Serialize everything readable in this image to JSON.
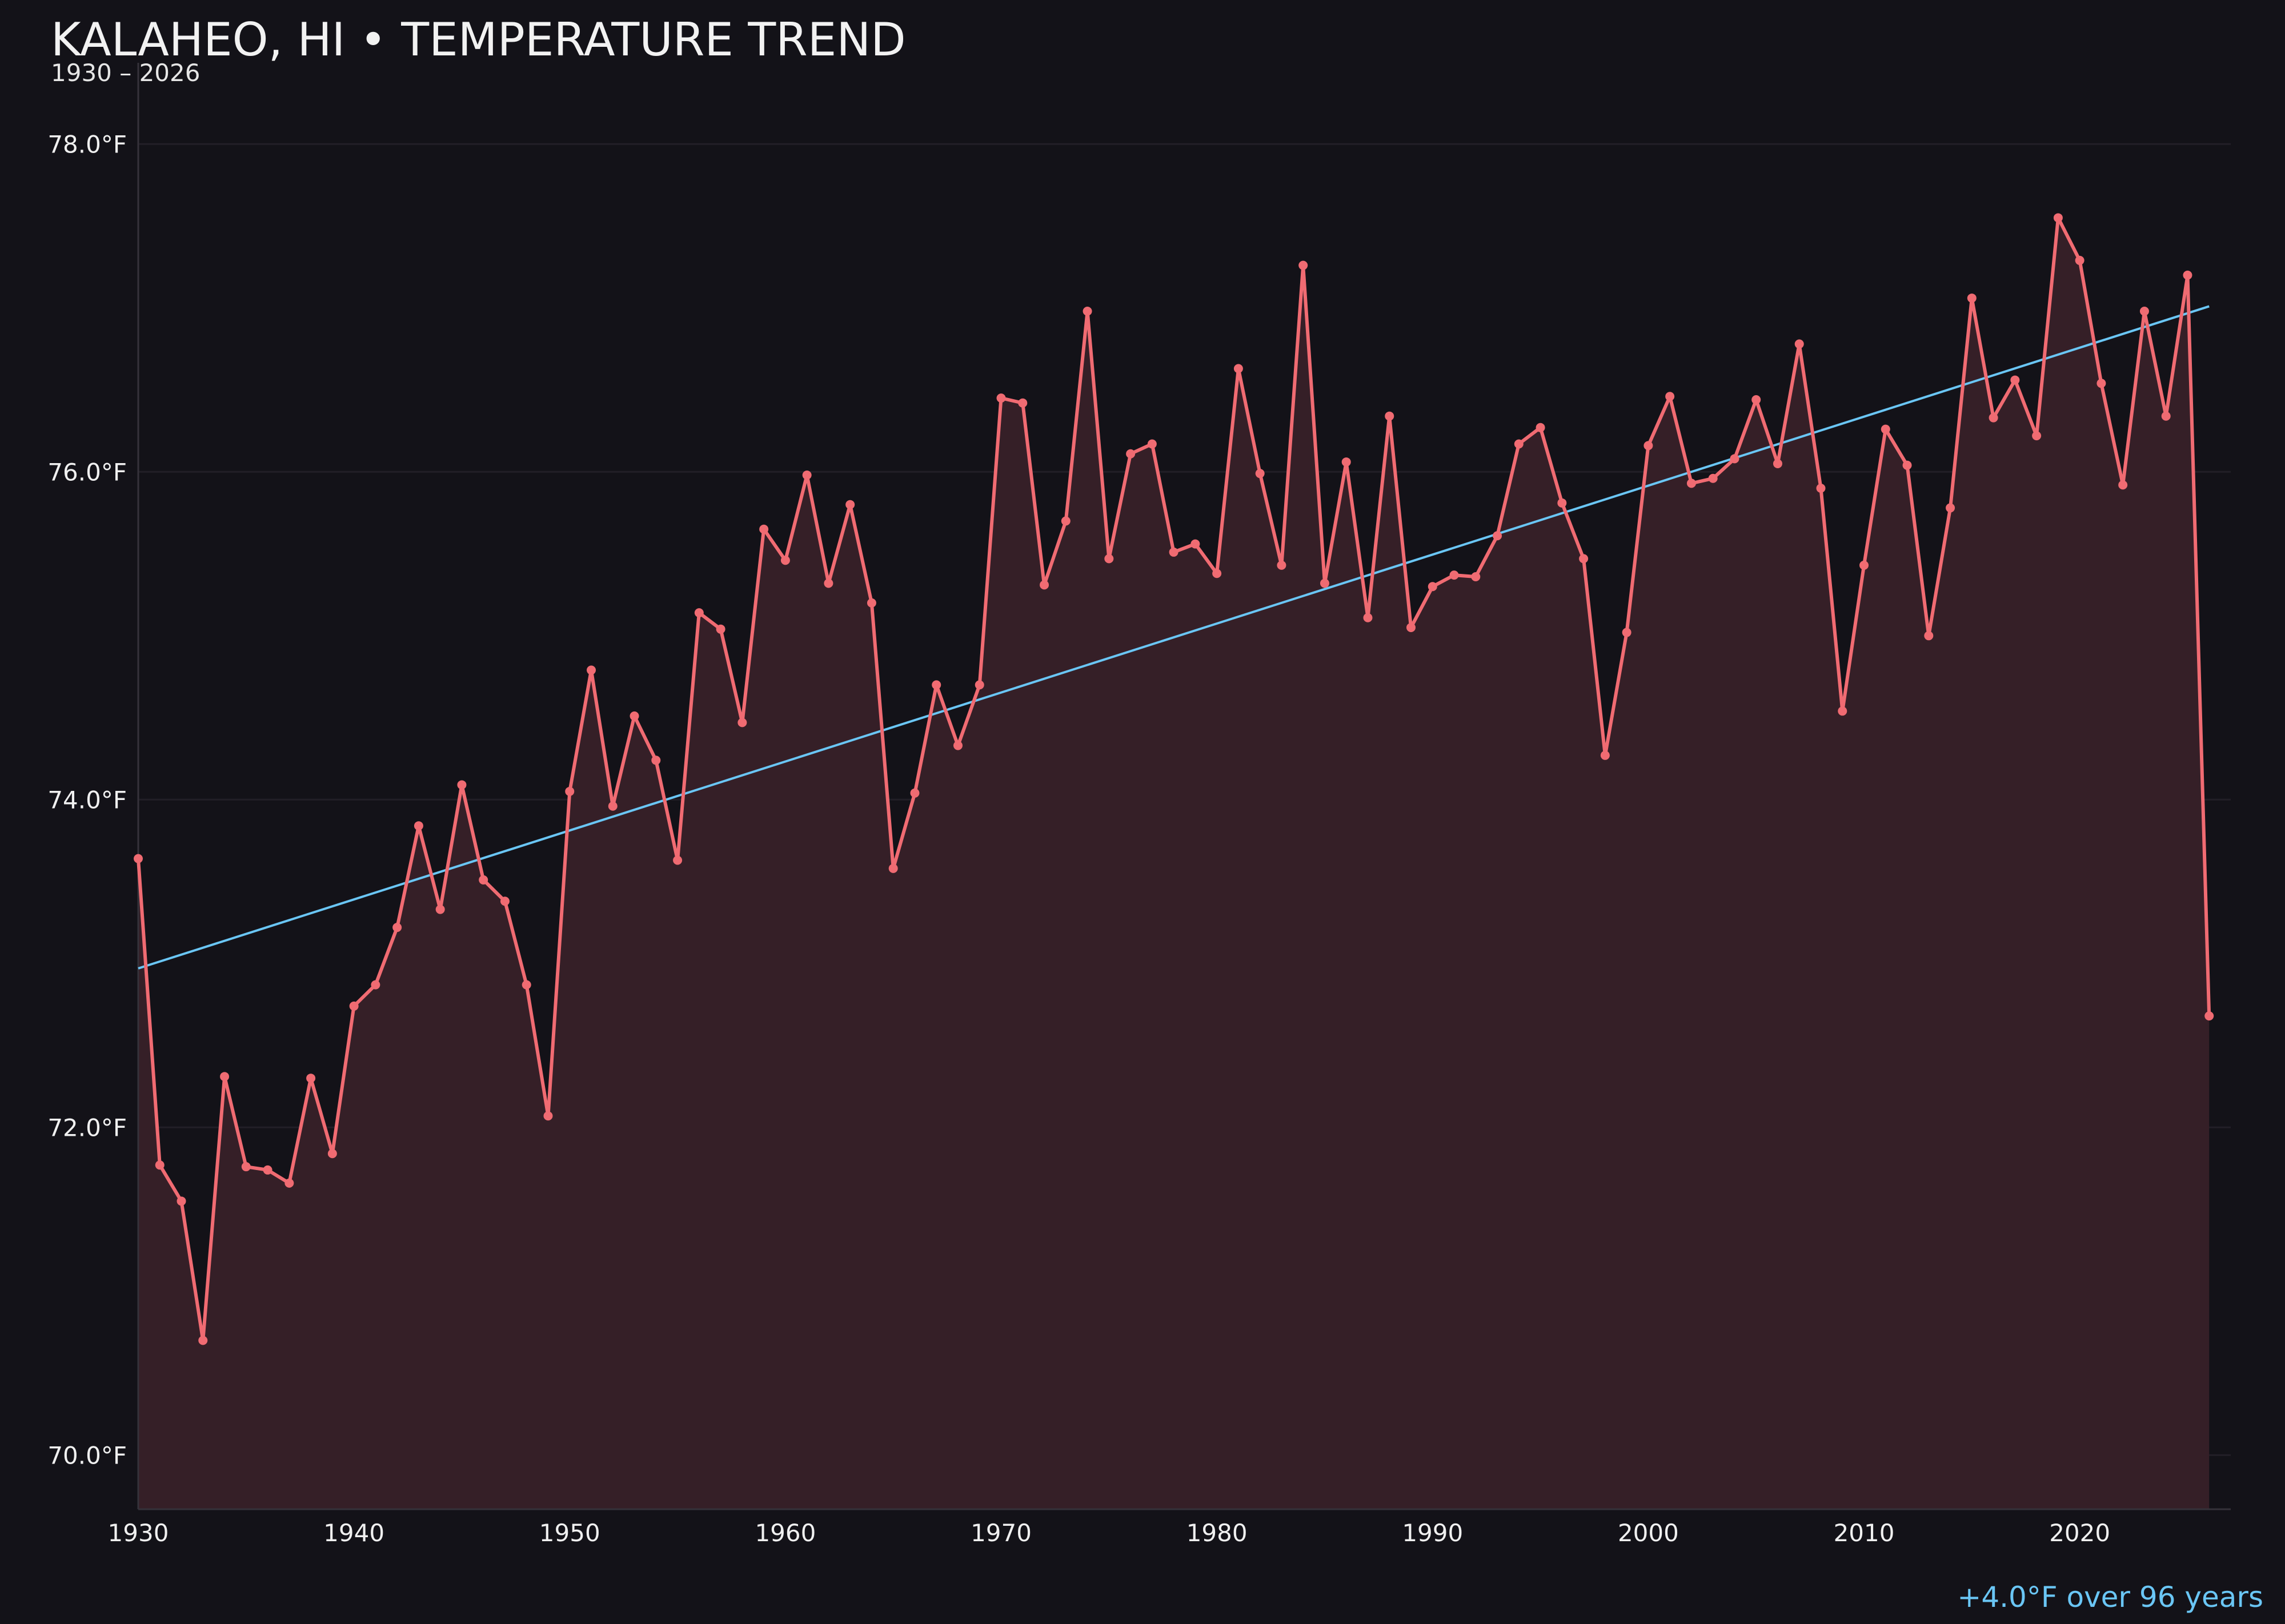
{
  "colors": {
    "background": "#131218",
    "series": "#f06b72",
    "area": "#351f27",
    "trend": "#6ac6f5",
    "grid": "#221f27",
    "axis": "#35323a"
  },
  "chart_data": {
    "type": "line",
    "title": "KALAHEO, HI • TEMPERATURE TREND",
    "subtitle": "1930 – 2026",
    "xlabel": "",
    "ylabel": "",
    "xlim": [
      1930,
      2027
    ],
    "ylim": [
      69.67,
      78.67
    ],
    "y_ticks": [
      70.0,
      72.0,
      74.0,
      76.0,
      78.0
    ],
    "y_tick_labels": [
      "70.0°F",
      "72.0°F",
      "74.0°F",
      "76.0°F",
      "78.0°F"
    ],
    "x_ticks": [
      1930,
      1940,
      1950,
      1960,
      1970,
      1980,
      1990,
      2000,
      2010,
      2020
    ],
    "x_tick_labels": [
      "1930",
      "1940",
      "1950",
      "1960",
      "1970",
      "1980",
      "1990",
      "2000",
      "2010",
      "2020"
    ],
    "grid": true,
    "series": [
      {
        "x": [
          1930,
          1931,
          1932,
          1933,
          1934,
          1935,
          1936,
          1937,
          1938,
          1939,
          1940,
          1941,
          1942,
          1943,
          1944,
          1945,
          1946,
          1947,
          1948,
          1949,
          1950,
          1951,
          1952,
          1953,
          1954,
          1955,
          1956,
          1957,
          1958,
          1959,
          1960,
          1961,
          1962,
          1963,
          1964,
          1965,
          1966,
          1967,
          1968,
          1969,
          1970,
          1971,
          1972,
          1973,
          1974,
          1975,
          1976,
          1977,
          1978,
          1979,
          1980,
          1981,
          1982,
          1983,
          1984,
          1985,
          1986,
          1987,
          1988,
          1989,
          1990,
          1991,
          1992,
          1993,
          1994,
          1995,
          1996,
          1997,
          1998,
          1999,
          2000,
          2001,
          2002,
          2003,
          2004,
          2005,
          2006,
          2007,
          2008,
          2009,
          2010,
          2011,
          2012,
          2013,
          2014,
          2015,
          2016,
          2017,
          2018,
          2019,
          2020,
          2021,
          2022,
          2023,
          2024,
          2025,
          2026
        ],
        "values": [
          73.64,
          71.77,
          71.55,
          70.7,
          72.31,
          71.76,
          71.74,
          71.66,
          72.3,
          71.84,
          72.74,
          72.87,
          73.22,
          73.84,
          73.33,
          74.09,
          73.51,
          73.38,
          72.87,
          72.07,
          74.05,
          74.79,
          73.96,
          74.51,
          74.24,
          73.63,
          75.14,
          75.04,
          74.47,
          75.65,
          75.46,
          75.98,
          75.32,
          75.8,
          75.2,
          73.58,
          74.04,
          74.7,
          74.33,
          74.7,
          76.45,
          76.42,
          75.31,
          75.7,
          76.98,
          75.47,
          76.11,
          76.17,
          75.51,
          75.56,
          75.38,
          76.63,
          75.99,
          75.43,
          77.26,
          75.32,
          76.06,
          75.11,
          76.34,
          75.05,
          75.3,
          75.37,
          75.36,
          75.61,
          76.17,
          76.27,
          75.81,
          75.47,
          74.27,
          75.02,
          76.16,
          76.46,
          75.93,
          75.96,
          76.08,
          76.44,
          76.05,
          76.78,
          75.9,
          74.54,
          75.43,
          76.26,
          76.04,
          75.0,
          75.78,
          77.06,
          76.33,
          76.56,
          76.22,
          77.55,
          77.29,
          76.54,
          75.92,
          76.98,
          76.34,
          77.2,
          72.68
        ]
      }
    ],
    "trend": {
      "x": [
        1930,
        2026
      ],
      "y": [
        72.97,
        77.01
      ]
    },
    "annotation": "+4.0°F over 96 years"
  }
}
